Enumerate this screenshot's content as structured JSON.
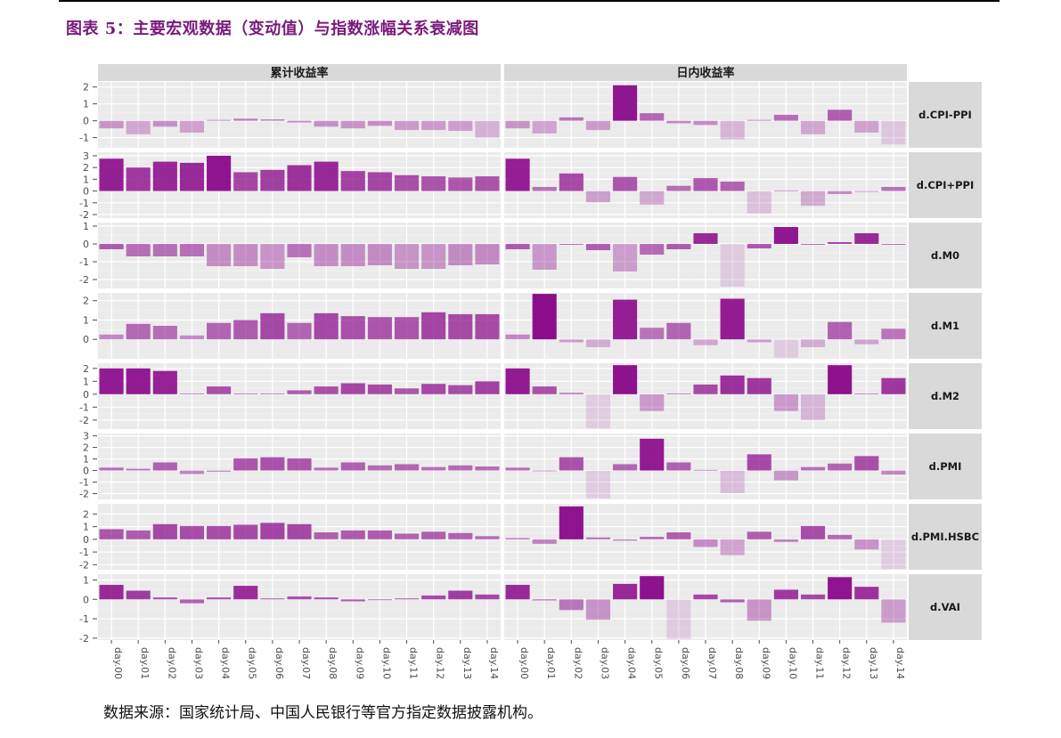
{
  "title": "图表 5：主要宏观数据（变动值）与指数涨幅关系衰减图",
  "source": "数据来源：国家统计局、中国人民银行等官方指定数据披露机构。",
  "colors": {
    "bar": "#8b0a8b",
    "panel_bg": "#ebebeb",
    "strip_bg": "#d9d9d9"
  },
  "chart_data": {
    "type": "bar",
    "facet_columns": [
      "累计收益率",
      "日内收益率"
    ],
    "categories": [
      "day.00",
      "day.01",
      "day.02",
      "day.03",
      "day.04",
      "day.05",
      "day.06",
      "day.07",
      "day.08",
      "day.09",
      "day.10",
      "day.11",
      "day.12",
      "day.13",
      "day.14"
    ],
    "rows": [
      {
        "name": "d.CPI-PPI",
        "ylim": [
          -1.6,
          2.3
        ],
        "ticks": [
          -1,
          0,
          1,
          2
        ],
        "values": [
          [
            -0.45,
            -0.8,
            -0.35,
            -0.7,
            0.05,
            0.12,
            0.08,
            -0.1,
            -0.35,
            -0.45,
            -0.3,
            -0.55,
            -0.55,
            -0.6,
            -1.0
          ],
          [
            -0.45,
            -0.75,
            0.2,
            -0.55,
            2.1,
            0.45,
            -0.15,
            -0.25,
            -1.1,
            0.05,
            0.35,
            -0.8,
            0.65,
            -0.7,
            -1.4
          ]
        ]
      },
      {
        "name": "d.CPI+PPI",
        "ylim": [
          -2.3,
          3.3
        ],
        "ticks": [
          -2,
          -1,
          0,
          1,
          2,
          3
        ],
        "values": [
          [
            2.75,
            2.0,
            2.5,
            2.4,
            3.0,
            1.6,
            1.8,
            2.2,
            2.5,
            1.7,
            1.6,
            1.35,
            1.25,
            1.15,
            1.25
          ],
          [
            2.75,
            0.35,
            1.5,
            -0.95,
            1.2,
            -1.15,
            0.45,
            1.1,
            0.8,
            -1.9,
            0.05,
            -1.25,
            -0.25,
            0.0,
            0.35
          ]
        ]
      },
      {
        "name": "d.M0",
        "ylim": [
          -2.5,
          1.2
        ],
        "ticks": [
          -2,
          -1,
          0,
          1
        ],
        "values": [
          [
            -0.3,
            -0.7,
            -0.7,
            -0.7,
            -1.25,
            -1.25,
            -1.4,
            -0.75,
            -1.25,
            -1.25,
            -1.2,
            -1.4,
            -1.4,
            -1.2,
            -1.15
          ],
          [
            -0.3,
            -1.45,
            0.0,
            -0.35,
            -1.55,
            -0.6,
            -0.3,
            0.6,
            -2.4,
            -0.25,
            0.95,
            0.0,
            0.1,
            0.6,
            0.0
          ]
        ]
      },
      {
        "name": "d.M1",
        "ylim": [
          -1.0,
          2.4
        ],
        "ticks": [
          0,
          1,
          2
        ],
        "values": [
          [
            0.25,
            0.8,
            0.7,
            0.2,
            0.85,
            1.0,
            1.35,
            0.85,
            1.35,
            1.2,
            1.15,
            1.15,
            1.4,
            1.3,
            1.3
          ],
          [
            0.25,
            2.35,
            -0.15,
            -0.4,
            2.05,
            0.6,
            0.85,
            -0.3,
            2.1,
            -0.15,
            -0.95,
            -0.4,
            0.9,
            -0.25,
            0.55
          ]
        ]
      },
      {
        "name": "d.M2",
        "ylim": [
          -2.7,
          2.4
        ],
        "ticks": [
          -2,
          -1,
          0,
          1,
          2
        ],
        "values": [
          [
            2.0,
            2.0,
            1.8,
            0.05,
            0.6,
            0.05,
            0.05,
            0.3,
            0.6,
            0.85,
            0.75,
            0.45,
            0.8,
            0.7,
            1.0
          ],
          [
            2.0,
            0.6,
            0.1,
            -2.65,
            2.25,
            -1.3,
            0.05,
            0.75,
            1.45,
            1.25,
            -1.3,
            -2.0,
            2.25,
            0.05,
            1.25
          ]
        ]
      },
      {
        "name": "d.PMI",
        "ylim": [
          -2.5,
          3.2
        ],
        "ticks": [
          -2,
          -1,
          0,
          1,
          2,
          3
        ],
        "values": [
          [
            0.25,
            0.15,
            0.7,
            -0.3,
            -0.1,
            1.05,
            1.15,
            1.05,
            0.25,
            0.7,
            0.45,
            0.55,
            0.3,
            0.45,
            0.35
          ],
          [
            0.25,
            -0.05,
            1.15,
            -2.4,
            0.55,
            2.75,
            0.7,
            0.05,
            -1.95,
            1.4,
            -0.85,
            0.3,
            0.6,
            1.25,
            -0.35
          ]
        ]
      },
      {
        "name": "d.PMI.HSBC",
        "ylim": [
          -2.4,
          2.8
        ],
        "ticks": [
          -2,
          -1,
          0,
          1,
          2
        ],
        "values": [
          [
            0.8,
            0.7,
            1.2,
            1.05,
            1.05,
            1.15,
            1.3,
            1.2,
            0.55,
            0.7,
            0.7,
            0.45,
            0.6,
            0.5,
            0.25
          ],
          [
            0.1,
            -0.35,
            2.6,
            0.15,
            -0.1,
            0.2,
            0.55,
            -0.6,
            -1.25,
            0.6,
            -0.2,
            1.05,
            0.35,
            -0.8,
            -2.35
          ]
        ]
      },
      {
        "name": "d.VAI",
        "ylim": [
          -2.1,
          1.3
        ],
        "ticks": [
          -2,
          -1,
          0,
          1
        ],
        "values": [
          [
            0.75,
            0.45,
            0.1,
            -0.2,
            0.1,
            0.7,
            0.05,
            0.15,
            0.1,
            -0.1,
            0.0,
            0.05,
            0.2,
            0.45,
            0.25
          ],
          [
            0.75,
            -0.05,
            -0.55,
            -1.05,
            0.8,
            1.2,
            -2.05,
            0.25,
            -0.15,
            -1.1,
            0.5,
            0.25,
            1.15,
            0.65,
            -1.2
          ]
        ]
      }
    ]
  }
}
